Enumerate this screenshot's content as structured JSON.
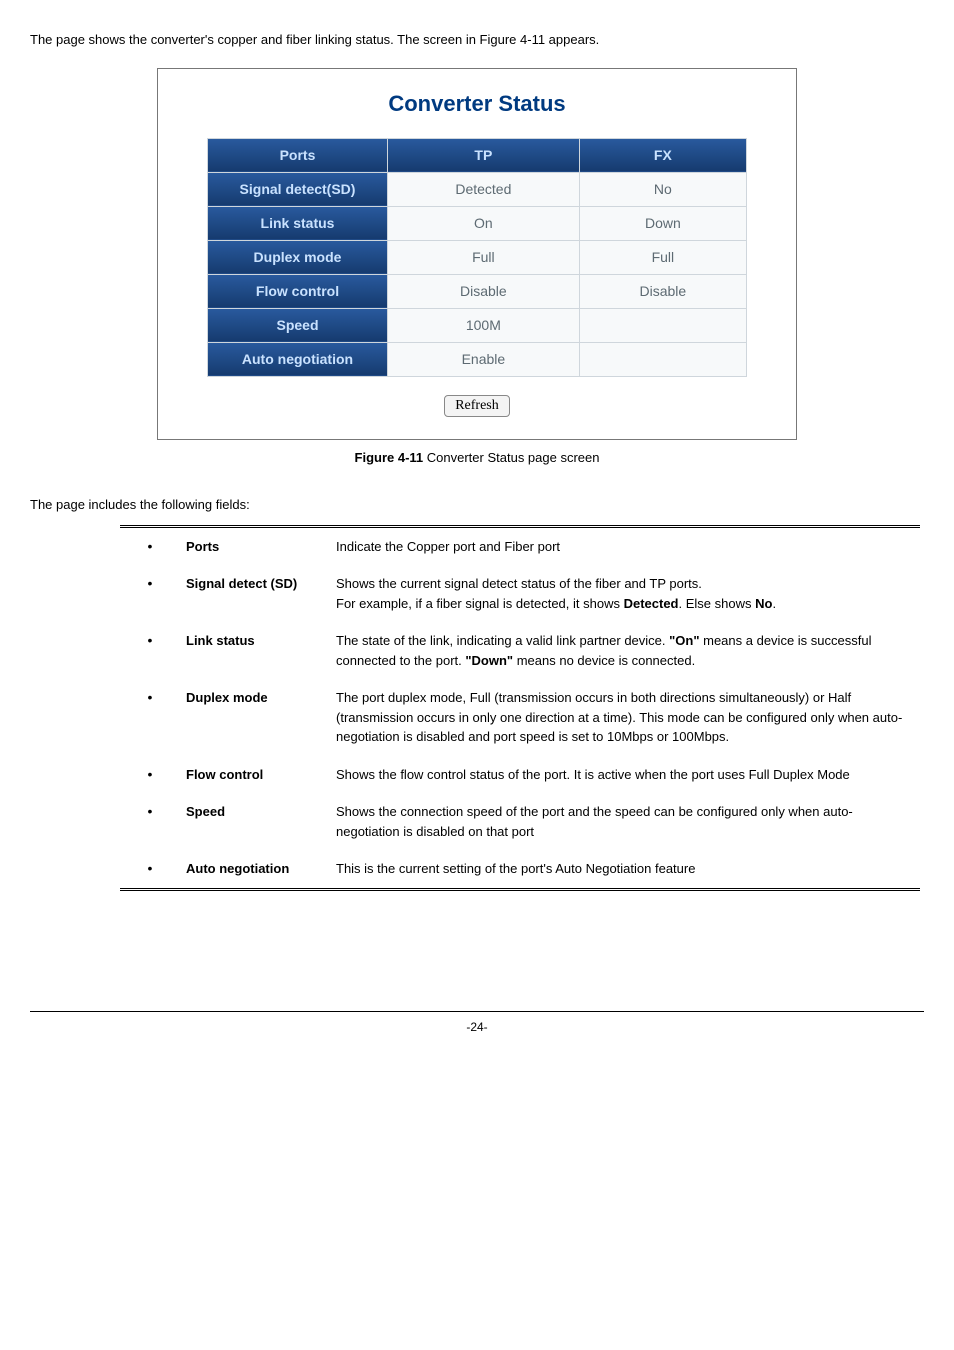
{
  "intro_text": "The page shows the converter's copper and fiber linking status. The screen in Figure 4-11 appears.",
  "screenshot": {
    "title": "Converter Status",
    "headers": [
      "Ports",
      "TP",
      "FX"
    ],
    "rows": [
      {
        "label": "Signal detect(SD)",
        "tp": "Detected",
        "fx": "No"
      },
      {
        "label": "Link status",
        "tp": "On",
        "fx": "Down"
      },
      {
        "label": "Duplex mode",
        "tp": "Full",
        "fx": "Full"
      },
      {
        "label": "Flow control",
        "tp": "Disable",
        "fx": "Disable"
      },
      {
        "label": "Speed",
        "tp": "100M",
        "fx": ""
      },
      {
        "label": "Auto negotiation",
        "tp": "Enable",
        "fx": ""
      }
    ],
    "refresh_label": "Refresh"
  },
  "caption_prefix": "Figure 4-11",
  "caption_text": " Converter Status page screen",
  "fields_intro": "The page includes the following fields:",
  "fields": [
    {
      "label": "Ports",
      "desc_parts": [
        {
          "t": "Indicate the Copper port and Fiber port"
        }
      ]
    },
    {
      "label": "Signal detect (SD)",
      "desc_parts": [
        {
          "t": "Shows the current signal detect status of the fiber and TP ports.\nFor example, if a fiber signal is detected, it shows "
        },
        {
          "t": "Detected",
          "b": true
        },
        {
          "t": ". Else shows "
        },
        {
          "t": "No",
          "b": true
        },
        {
          "t": "."
        }
      ]
    },
    {
      "label": "Link status",
      "desc_parts": [
        {
          "t": "The state of the link, indicating a valid link partner device. "
        },
        {
          "t": "\"On\"",
          "b": true
        },
        {
          "t": " means a device is successful connected to the port. "
        },
        {
          "t": "\"Down\"",
          "b": true
        },
        {
          "t": " means no device is connected."
        }
      ]
    },
    {
      "label": "Duplex mode",
      "desc_parts": [
        {
          "t": "The port duplex mode, Full (transmission occurs in both directions simultaneously) or Half (transmission occurs in only one direction at a time). This mode can be configured only when auto-negotiation is disabled and port speed is set to 10Mbps or 100Mbps."
        }
      ]
    },
    {
      "label": "Flow control",
      "desc_parts": [
        {
          "t": "Shows the flow control status of the port. It is active when the port uses Full Duplex Mode"
        }
      ]
    },
    {
      "label": "Speed",
      "desc_parts": [
        {
          "t": "Shows the connection speed of the port and the speed can be configured only when auto-negotiation is disabled on that port"
        }
      ]
    },
    {
      "label": "Auto negotiation",
      "desc_parts": [
        {
          "t": "This is the current setting of the port's Auto Negotiation feature"
        }
      ]
    }
  ],
  "page_number": "-24-",
  "colors": {
    "title_color": "#003a80",
    "header_bg_top": "#295a9e",
    "header_bg_bottom": "#153a6e",
    "header_text": "#c9e2ff",
    "cell_bg": "#f7f9fa",
    "cell_text": "#5d6a72",
    "border_color": "#cfd6dc"
  }
}
